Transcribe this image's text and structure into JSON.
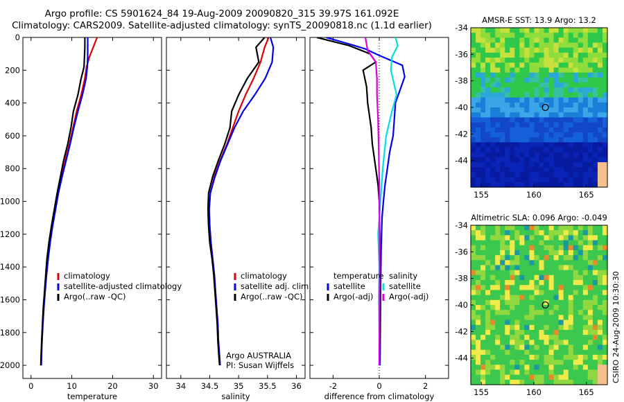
{
  "header": {
    "line1": "Argo profile: CS 5901624_84 19-Aug-2009 20090820_315 39.97S 161.092E",
    "line2": "Climatology: CARS2009. Satellite-adjusted climatology: synTS_20090818.nc (1.1d earlier)"
  },
  "side_label": "CSIRO 24-Aug-2009 10:30:30",
  "chart_data": [
    {
      "id": "temperature_panel",
      "type": "line",
      "xlabel": "temperature",
      "ylabel": "",
      "xlim": [
        -2,
        32
      ],
      "ylim": [
        2080,
        0
      ],
      "xticks": [
        0,
        10,
        20,
        30
      ],
      "yticks": [
        0,
        200,
        400,
        600,
        800,
        1000,
        1200,
        1400,
        1600,
        1800,
        2000
      ],
      "legend": [
        "climatology",
        "satellite-adjusted climatology",
        "Argo(..raw -QC)"
      ],
      "series": [
        {
          "name": "climatology",
          "color": "#dd0000",
          "points": [
            [
              16.2,
              0
            ],
            [
              15.4,
              50
            ],
            [
              14.3,
              120
            ],
            [
              13.6,
              180
            ],
            [
              13.2,
              250
            ],
            [
              12.3,
              350
            ],
            [
              11.2,
              450
            ],
            [
              10.3,
              550
            ],
            [
              9.4,
              650
            ],
            [
              8.4,
              750
            ],
            [
              7.5,
              850
            ],
            [
              6.6,
              950
            ],
            [
              5.9,
              1050
            ],
            [
              5.2,
              1150
            ],
            [
              4.6,
              1250
            ],
            [
              4.1,
              1350
            ],
            [
              3.7,
              1450
            ],
            [
              3.4,
              1550
            ],
            [
              3.1,
              1650
            ],
            [
              2.9,
              1750
            ],
            [
              2.7,
              1850
            ],
            [
              2.5,
              1950
            ],
            [
              2.45,
              2000
            ]
          ]
        },
        {
          "name": "satellite-adjusted climatology",
          "color": "#0000ee",
          "points": [
            [
              13.9,
              0
            ],
            [
              13.9,
              60
            ],
            [
              13.9,
              120
            ],
            [
              13.8,
              180
            ],
            [
              13.5,
              250
            ],
            [
              12.6,
              350
            ],
            [
              11.5,
              450
            ],
            [
              10.5,
              550
            ],
            [
              9.6,
              650
            ],
            [
              8.6,
              750
            ],
            [
              7.6,
              850
            ],
            [
              6.7,
              950
            ],
            [
              6.0,
              1050
            ],
            [
              5.3,
              1150
            ],
            [
              4.7,
              1250
            ],
            [
              4.2,
              1350
            ],
            [
              3.8,
              1450
            ],
            [
              3.45,
              1550
            ],
            [
              3.15,
              1650
            ],
            [
              2.9,
              1750
            ],
            [
              2.7,
              1850
            ],
            [
              2.55,
              1950
            ],
            [
              2.5,
              2000
            ]
          ]
        },
        {
          "name": "Argo(..raw -QC)",
          "color": "#000000",
          "points": [
            [
              13.2,
              0
            ],
            [
              13.2,
              60
            ],
            [
              13.1,
              120
            ],
            [
              13.0,
              180
            ],
            [
              12.2,
              260
            ],
            [
              11.5,
              350
            ],
            [
              10.4,
              450
            ],
            [
              9.8,
              550
            ],
            [
              9.0,
              650
            ],
            [
              8.0,
              750
            ],
            [
              7.2,
              850
            ],
            [
              6.4,
              950
            ],
            [
              5.7,
              1050
            ],
            [
              5.0,
              1150
            ],
            [
              4.4,
              1250
            ],
            [
              3.9,
              1350
            ],
            [
              3.6,
              1450
            ],
            [
              3.3,
              1550
            ],
            [
              3.0,
              1650
            ],
            [
              2.8,
              1750
            ],
            [
              2.6,
              1850
            ],
            [
              2.45,
              1950
            ],
            [
              2.4,
              2000
            ]
          ]
        }
      ]
    },
    {
      "id": "salinity_panel",
      "type": "line",
      "xlabel": "salinity",
      "ylabel": "",
      "xlim": [
        33.75,
        36.15
      ],
      "ylim": [
        2080,
        0
      ],
      "xticks": [
        34,
        34.5,
        35,
        35.5,
        36
      ],
      "yticks": [],
      "legend": [
        "climatology",
        "satellite adj. clim.",
        "Argo(..raw -QC)"
      ],
      "series": [
        {
          "name": "climatology",
          "color": "#dd0000",
          "points": [
            [
              35.52,
              0
            ],
            [
              35.45,
              60
            ],
            [
              35.38,
              150
            ],
            [
              35.26,
              250
            ],
            [
              35.12,
              350
            ],
            [
              35.0,
              450
            ],
            [
              34.9,
              550
            ],
            [
              34.8,
              650
            ],
            [
              34.68,
              750
            ],
            [
              34.58,
              850
            ],
            [
              34.51,
              950
            ],
            [
              34.49,
              1050
            ],
            [
              34.5,
              1150
            ],
            [
              34.52,
              1250
            ],
            [
              34.55,
              1350
            ],
            [
              34.58,
              1450
            ],
            [
              34.6,
              1550
            ],
            [
              34.62,
              1650
            ],
            [
              34.64,
              1750
            ],
            [
              34.65,
              1850
            ],
            [
              34.67,
              1950
            ],
            [
              34.68,
              2000
            ]
          ]
        },
        {
          "name": "satellite adj. clim.",
          "color": "#0000ee",
          "points": [
            [
              35.55,
              0
            ],
            [
              35.6,
              60
            ],
            [
              35.58,
              150
            ],
            [
              35.46,
              250
            ],
            [
              35.28,
              350
            ],
            [
              35.08,
              450
            ],
            [
              34.93,
              550
            ],
            [
              34.81,
              650
            ],
            [
              34.69,
              750
            ],
            [
              34.59,
              850
            ],
            [
              34.51,
              950
            ],
            [
              34.49,
              1050
            ],
            [
              34.5,
              1150
            ],
            [
              34.52,
              1250
            ],
            [
              34.55,
              1350
            ],
            [
              34.58,
              1450
            ],
            [
              34.6,
              1550
            ],
            [
              34.62,
              1650
            ],
            [
              34.64,
              1750
            ],
            [
              34.65,
              1850
            ],
            [
              34.67,
              1950
            ],
            [
              34.68,
              2000
            ]
          ]
        },
        {
          "name": "Argo(..raw -QC)",
          "color": "#000000",
          "points": [
            [
              35.45,
              0
            ],
            [
              35.3,
              60
            ],
            [
              35.35,
              150
            ],
            [
              35.15,
              250
            ],
            [
              35.0,
              350
            ],
            [
              34.88,
              450
            ],
            [
              34.85,
              550
            ],
            [
              34.76,
              650
            ],
            [
              34.65,
              750
            ],
            [
              34.55,
              850
            ],
            [
              34.48,
              950
            ],
            [
              34.47,
              1050
            ],
            [
              34.48,
              1150
            ],
            [
              34.5,
              1250
            ],
            [
              34.54,
              1350
            ],
            [
              34.57,
              1450
            ],
            [
              34.59,
              1550
            ],
            [
              34.61,
              1650
            ],
            [
              34.63,
              1750
            ],
            [
              34.64,
              1850
            ],
            [
              34.66,
              1950
            ],
            [
              34.67,
              2000
            ]
          ]
        }
      ],
      "annotation": [
        "Argo AUSTRALIA",
        "PI: Susan Wijffels"
      ]
    },
    {
      "id": "difference_panel",
      "type": "line",
      "xlabel": "difference from climatology",
      "ylabel": "",
      "xlim": [
        -3.0,
        3.0
      ],
      "ylim": [
        2080,
        0
      ],
      "xticks": [
        -2,
        0,
        2
      ],
      "yticks": [],
      "legend_groups": [
        {
          "title": "temperature",
          "items": [
            "satellite",
            "Argo(-adj)"
          ]
        },
        {
          "title": "salinity",
          "items": [
            "satellite",
            "Argo(-adj)"
          ]
        }
      ],
      "series": [
        {
          "name": "temperature satellite",
          "color": "#0000ee",
          "points": [
            [
              -2.3,
              0
            ],
            [
              -1.3,
              40
            ],
            [
              -0.6,
              70
            ],
            [
              0.0,
              110
            ],
            [
              0.5,
              140
            ],
            [
              1.0,
              170
            ],
            [
              1.1,
              240
            ],
            [
              0.9,
              320
            ],
            [
              0.7,
              400
            ],
            [
              0.65,
              500
            ],
            [
              0.6,
              600
            ],
            [
              0.45,
              700
            ],
            [
              0.35,
              800
            ],
            [
              0.25,
              900
            ],
            [
              0.18,
              1000
            ],
            [
              0.12,
              1100
            ],
            [
              0.08,
              1300
            ],
            [
              0.06,
              1500
            ],
            [
              0.05,
              1700
            ],
            [
              0.04,
              1900
            ],
            [
              0.03,
              2000
            ]
          ]
        },
        {
          "name": "temperature Argo(-adj)",
          "color": "#000000",
          "points": [
            [
              -2.7,
              0
            ],
            [
              -1.3,
              50
            ],
            [
              -0.4,
              100
            ],
            [
              -0.15,
              150
            ],
            [
              -0.7,
              200
            ],
            [
              -0.55,
              300
            ],
            [
              -0.5,
              400
            ],
            [
              -0.35,
              550
            ],
            [
              -0.3,
              650
            ],
            [
              -0.15,
              800
            ],
            [
              -0.05,
              900
            ],
            [
              0.0,
              1000
            ],
            [
              0.02,
              1200
            ],
            [
              0.03,
              1400
            ],
            [
              0.02,
              1600
            ],
            [
              0.03,
              1800
            ],
            [
              0.0,
              2000
            ]
          ]
        },
        {
          "name": "salinity satellite",
          "color": "#00e0e0",
          "points": [
            [
              0.7,
              0
            ],
            [
              0.8,
              50
            ],
            [
              0.55,
              120
            ],
            [
              0.5,
              200
            ],
            [
              0.75,
              350
            ],
            [
              0.55,
              450
            ],
            [
              0.3,
              600
            ],
            [
              0.15,
              800
            ],
            [
              0.05,
              1000
            ],
            [
              -0.05,
              1200
            ],
            [
              0.0,
              1400
            ],
            [
              -0.02,
              1600
            ],
            [
              0.0,
              1800
            ],
            [
              0.0,
              2000
            ]
          ]
        },
        {
          "name": "salinity Argo(-adj)",
          "color": "#dd00dd",
          "points": [
            [
              -0.6,
              0
            ],
            [
              -0.5,
              80
            ],
            [
              -0.15,
              150
            ],
            [
              -0.1,
              250
            ],
            [
              -0.1,
              350
            ],
            [
              -0.05,
              500
            ],
            [
              -0.02,
              700
            ],
            [
              0.0,
              900
            ],
            [
              0.01,
              1100
            ],
            [
              0.02,
              1400
            ],
            [
              0.01,
              1700
            ],
            [
              0.0,
              2000
            ]
          ]
        }
      ]
    },
    {
      "id": "sst_map",
      "type": "heatmap",
      "title": "AMSR-E SST: 13.9 Argo: 13.2",
      "xlim": [
        154,
        167
      ],
      "ylim": [
        -46,
        -34
      ],
      "xticks": [
        155,
        160,
        165
      ],
      "yticks": [
        -34,
        -36,
        -38,
        -40,
        -42,
        -44
      ],
      "marker": {
        "lon": 161.1,
        "lat": -40.0
      },
      "colors": {
        "warm": "#f7d84a",
        "mid": "#2fc84a",
        "cool": "#1a7fd8",
        "cold": "#081aa0",
        "land": "#f4c090"
      }
    },
    {
      "id": "sla_map",
      "type": "heatmap",
      "title": "Altimetric SLA: 0.096 Argo: -0.049",
      "xlim": [
        154,
        167
      ],
      "ylim": [
        -46,
        -34
      ],
      "xticks": [
        155,
        160,
        165
      ],
      "yticks": [
        -34,
        -36,
        -38,
        -40,
        -42,
        -44
      ],
      "marker": {
        "lon": 161.1,
        "lat": -40.0
      },
      "colors": {
        "high": "#e88a2a",
        "warm": "#f2ea4a",
        "mid": "#3cc84e",
        "low": "#1a9aa0",
        "land": "#f4c090"
      }
    }
  ]
}
